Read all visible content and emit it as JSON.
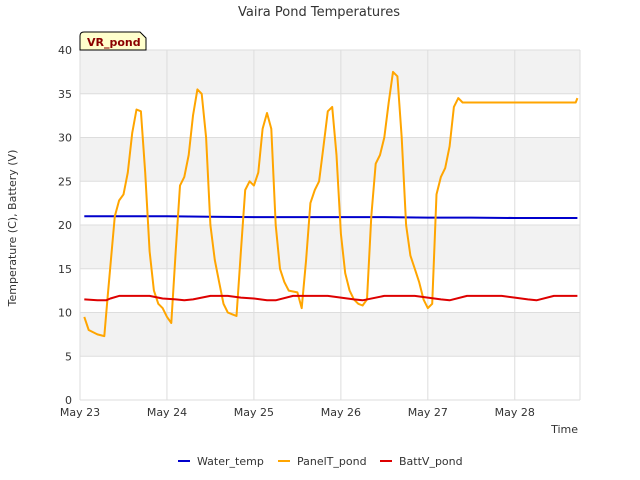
{
  "chart_data": {
    "type": "line",
    "title": "Vaira Pond Temperatures",
    "xlabel": "Time",
    "ylabel": "Temperature (C), Battery (V)",
    "ylim": [
      0,
      40
    ],
    "xlim": [
      0,
      5.75
    ],
    "x_unit": "days since May 23 00:00",
    "yticks": [
      0,
      5,
      10,
      15,
      20,
      25,
      30,
      35,
      40
    ],
    "xticks": [
      {
        "x": 0,
        "label": "May 23"
      },
      {
        "x": 1,
        "label": "May 24"
      },
      {
        "x": 2,
        "label": "May 25"
      },
      {
        "x": 3,
        "label": "May 26"
      },
      {
        "x": 4,
        "label": "May 27"
      },
      {
        "x": 5,
        "label": "May 28"
      }
    ],
    "grid": true,
    "legend_position": "bottom",
    "badge": "VR_pond",
    "series": [
      {
        "name": "Water_temp",
        "color": "#0000cc",
        "x": [
          0.05,
          0.5,
          1.0,
          1.5,
          2.0,
          2.5,
          3.0,
          3.5,
          4.0,
          4.5,
          5.0,
          5.5,
          5.72
        ],
        "y": [
          21.0,
          21.0,
          21.0,
          20.95,
          20.9,
          20.9,
          20.9,
          20.9,
          20.85,
          20.85,
          20.8,
          20.8,
          20.8
        ]
      },
      {
        "name": "PanelT_pond",
        "color": "#ffa500",
        "x": [
          0.05,
          0.1,
          0.2,
          0.28,
          0.32,
          0.4,
          0.45,
          0.5,
          0.55,
          0.6,
          0.65,
          0.7,
          0.75,
          0.8,
          0.85,
          0.9,
          0.95,
          1.0,
          1.05,
          1.1,
          1.15,
          1.2,
          1.25,
          1.3,
          1.35,
          1.4,
          1.45,
          1.5,
          1.55,
          1.6,
          1.65,
          1.7,
          1.75,
          1.8,
          1.85,
          1.9,
          1.95,
          2.0,
          2.05,
          2.1,
          2.15,
          2.2,
          2.25,
          2.3,
          2.35,
          2.4,
          2.45,
          2.5,
          2.55,
          2.6,
          2.65,
          2.7,
          2.75,
          2.8,
          2.85,
          2.9,
          2.95,
          3.0,
          3.05,
          3.1,
          3.15,
          3.2,
          3.25,
          3.3,
          3.35,
          3.4,
          3.45,
          3.5,
          3.55,
          3.6,
          3.65,
          3.7,
          3.75,
          3.8,
          3.85,
          3.9,
          3.95,
          4.0,
          4.05,
          4.1,
          4.15,
          4.2,
          4.25,
          4.3,
          4.35,
          4.4,
          4.45,
          4.5,
          4.55,
          4.6,
          4.65,
          4.7,
          4.75,
          4.8,
          4.85,
          4.9,
          4.95,
          5.0,
          5.05,
          5.1,
          5.15,
          5.2,
          5.25,
          5.3,
          5.35,
          5.4,
          5.45,
          5.5,
          5.55,
          5.6,
          5.65,
          5.7,
          5.72
        ],
        "y": [
          9.5,
          8.0,
          7.5,
          7.3,
          12.0,
          21.0,
          22.8,
          23.5,
          26.0,
          30.5,
          33.2,
          33.0,
          26.0,
          17.0,
          12.5,
          11.0,
          10.5,
          9.5,
          8.8,
          17.0,
          24.5,
          25.5,
          28.0,
          32.5,
          35.5,
          35.0,
          30.0,
          20.0,
          16.0,
          13.5,
          11.0,
          10.0,
          9.8,
          9.6,
          17.0,
          24.0,
          25.0,
          24.5,
          26.0,
          31.0,
          32.8,
          31.0,
          20.0,
          15.0,
          13.5,
          12.5,
          12.4,
          12.3,
          10.5,
          16.0,
          22.5,
          24.0,
          25.0,
          29.0,
          33.0,
          33.5,
          28.0,
          19.0,
          14.5,
          12.5,
          11.5,
          11.0,
          10.8,
          11.5,
          21.0,
          27.0,
          28.0,
          30.0,
          34.0,
          37.5,
          37.0,
          30.0,
          20.0,
          16.5,
          15.0,
          13.5,
          11.5,
          10.5,
          11.0,
          23.5,
          25.5,
          26.5,
          29.0,
          33.5,
          34.5,
          34.0,
          34.0,
          34.0,
          34.0,
          34.0,
          34.0,
          34.0,
          34.0,
          34.0,
          34.0,
          34.0,
          34.0,
          34.0,
          34.0,
          34.0,
          34.0,
          34.0,
          34.0,
          34.0,
          34.0,
          34.0,
          34.0,
          34.0,
          34.0,
          34.0,
          34.0,
          34.0,
          34.5
        ]
      },
      {
        "name": "BattV_pond",
        "color": "#dd0000",
        "x": [
          0.05,
          0.2,
          0.3,
          0.35,
          0.45,
          0.6,
          0.8,
          0.95,
          1.1,
          1.2,
          1.3,
          1.5,
          1.7,
          1.85,
          2.0,
          2.15,
          2.25,
          2.45,
          2.65,
          2.85,
          3.0,
          3.15,
          3.25,
          3.5,
          3.7,
          3.85,
          4.0,
          4.15,
          4.25,
          4.45,
          4.65,
          4.85,
          5.0,
          5.15,
          5.25,
          5.45,
          5.72
        ],
        "y": [
          11.5,
          11.4,
          11.4,
          11.6,
          11.9,
          11.9,
          11.9,
          11.6,
          11.5,
          11.4,
          11.5,
          11.9,
          11.9,
          11.7,
          11.6,
          11.4,
          11.4,
          11.9,
          11.9,
          11.9,
          11.7,
          11.5,
          11.4,
          11.9,
          11.9,
          11.9,
          11.7,
          11.5,
          11.4,
          11.9,
          11.9,
          11.9,
          11.7,
          11.5,
          11.4,
          11.9,
          11.9
        ]
      }
    ]
  }
}
